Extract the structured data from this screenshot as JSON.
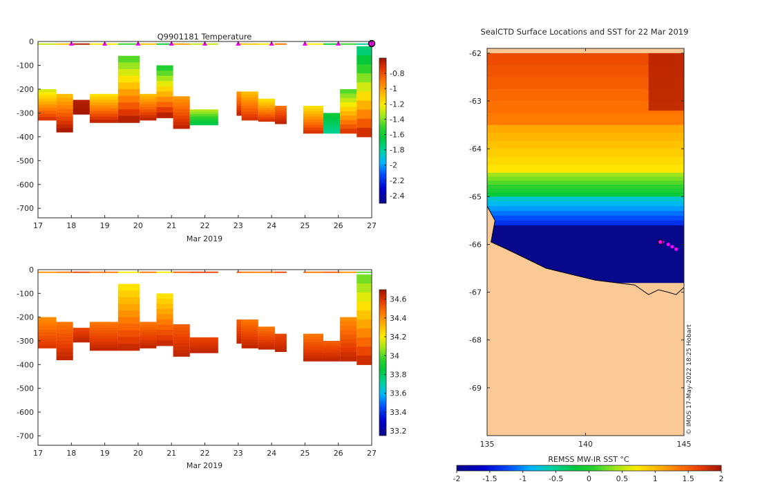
{
  "chart_data": [
    {
      "type": "heatmap",
      "title": "Q9901181  Temperature",
      "xlabel": "Mar 2019",
      "ylabel": "",
      "xlim": [
        17,
        27
      ],
      "ylim": [
        -740,
        0
      ],
      "x_ticks": [
        "17",
        "18",
        "19",
        "20",
        "21",
        "22",
        "23",
        "24",
        "25",
        "26",
        "27"
      ],
      "y_ticks": [
        "0",
        "-100",
        "-200",
        "-300",
        "-400",
        "-500",
        "-600",
        "-700"
      ],
      "colorbar": {
        "min": -2.5,
        "max": -0.6,
        "ticks": [
          "-0.8",
          "-1",
          "-1.2",
          "-1.4",
          "-1.6",
          "-1.8",
          "-2",
          "-2.2",
          "-2.4"
        ]
      },
      "profile_markers_x": [
        18,
        19,
        20,
        21,
        22,
        23,
        24,
        25,
        26
      ],
      "current_position_x": 27,
      "profiles": [
        {
          "x0": 17.0,
          "x1": 17.55,
          "top": -200,
          "bottom": -330,
          "tv": -1.3,
          "bv": -0.7
        },
        {
          "x0": 17.55,
          "x1": 18.05,
          "top": -220,
          "bottom": -380,
          "tv": -1.1,
          "bv": -0.6
        },
        {
          "x0": 18.05,
          "x1": 18.55,
          "top": -245,
          "bottom": -305,
          "tv": -0.65,
          "bv": -0.6
        },
        {
          "x0": 18.55,
          "x1": 19.4,
          "top": -220,
          "bottom": -340,
          "tv": -1.2,
          "bv": -0.65
        },
        {
          "x0": 19.4,
          "x1": 20.05,
          "top": -60,
          "bottom": -340,
          "tv": -1.5,
          "bv": -0.6
        },
        {
          "x0": 20.05,
          "x1": 20.55,
          "top": -220,
          "bottom": -330,
          "tv": -1.1,
          "bv": -0.65
        },
        {
          "x0": 20.55,
          "x1": 21.05,
          "top": -100,
          "bottom": -320,
          "tv": -1.6,
          "bv": -0.6
        },
        {
          "x0": 21.05,
          "x1": 21.55,
          "top": -230,
          "bottom": -365,
          "tv": -1.0,
          "bv": -0.65
        },
        {
          "x0": 21.55,
          "x1": 22.4,
          "top": -285,
          "bottom": -350,
          "tv": -1.3,
          "bv": -1.7
        },
        {
          "x0": 22.95,
          "x1": 23.1,
          "top": -210,
          "bottom": -310,
          "tv": -1.0,
          "bv": -0.65
        },
        {
          "x0": 23.1,
          "x1": 23.6,
          "top": -210,
          "bottom": -330,
          "tv": -1.1,
          "bv": -0.7
        },
        {
          "x0": 23.6,
          "x1": 24.1,
          "top": -240,
          "bottom": -335,
          "tv": -1.2,
          "bv": -0.7
        },
        {
          "x0": 24.1,
          "x1": 24.45,
          "top": -270,
          "bottom": -345,
          "tv": -0.9,
          "bv": -0.65
        },
        {
          "x0": 24.95,
          "x1": 25.55,
          "top": -270,
          "bottom": -385,
          "tv": -1.2,
          "bv": -0.7
        },
        {
          "x0": 25.55,
          "x1": 26.05,
          "top": -300,
          "bottom": -385,
          "tv": -1.6,
          "bv": -1.8
        },
        {
          "x0": 26.05,
          "x1": 26.55,
          "top": -200,
          "bottom": -385,
          "tv": -1.5,
          "bv": -0.7
        },
        {
          "x0": 26.55,
          "x1": 27.0,
          "top": -20,
          "bottom": -400,
          "tv": -1.8,
          "bv": -0.65
        }
      ]
    },
    {
      "type": "heatmap",
      "title": "",
      "xlabel": "Mar 2019",
      "ylabel": "",
      "xlim": [
        17,
        27
      ],
      "ylim": [
        -740,
        0
      ],
      "x_ticks": [
        "17",
        "18",
        "19",
        "20",
        "21",
        "22",
        "23",
        "24",
        "25",
        "26",
        "27"
      ],
      "y_ticks": [
        "0",
        "-100",
        "-200",
        "-300",
        "-400",
        "-500",
        "-600",
        "-700"
      ],
      "colorbar": {
        "min": 33.15,
        "max": 34.7,
        "ticks": [
          "34.6",
          "34.4",
          "34.2",
          "34",
          "33.8",
          "33.6",
          "33.4",
          "33.2"
        ]
      },
      "profiles": [
        {
          "x0": 17.0,
          "x1": 17.55,
          "top": -200,
          "bottom": -330,
          "tv": 34.4,
          "bv": 34.6
        },
        {
          "x0": 17.55,
          "x1": 18.05,
          "top": -220,
          "bottom": -380,
          "tv": 34.45,
          "bv": 34.65
        },
        {
          "x0": 18.05,
          "x1": 18.55,
          "top": -245,
          "bottom": -305,
          "tv": 34.55,
          "bv": 34.65
        },
        {
          "x0": 18.55,
          "x1": 19.4,
          "top": -220,
          "bottom": -340,
          "tv": 34.45,
          "bv": 34.65
        },
        {
          "x0": 19.4,
          "x1": 20.05,
          "top": -60,
          "bottom": -340,
          "tv": 34.2,
          "bv": 34.65
        },
        {
          "x0": 20.05,
          "x1": 20.55,
          "top": -220,
          "bottom": -330,
          "tv": 34.45,
          "bv": 34.65
        },
        {
          "x0": 20.55,
          "x1": 21.05,
          "top": -100,
          "bottom": -320,
          "tv": 34.2,
          "bv": 34.65
        },
        {
          "x0": 21.05,
          "x1": 21.55,
          "top": -230,
          "bottom": -365,
          "tv": 34.5,
          "bv": 34.65
        },
        {
          "x0": 21.55,
          "x1": 22.4,
          "top": -285,
          "bottom": -350,
          "tv": 34.55,
          "bv": 34.65
        },
        {
          "x0": 22.95,
          "x1": 23.1,
          "top": -210,
          "bottom": -310,
          "tv": 34.5,
          "bv": 34.65
        },
        {
          "x0": 23.1,
          "x1": 23.6,
          "top": -210,
          "bottom": -330,
          "tv": 34.45,
          "bv": 34.65
        },
        {
          "x0": 23.6,
          "x1": 24.1,
          "top": -240,
          "bottom": -335,
          "tv": 34.45,
          "bv": 34.65
        },
        {
          "x0": 24.1,
          "x1": 24.45,
          "top": -270,
          "bottom": -345,
          "tv": 34.55,
          "bv": 34.65
        },
        {
          "x0": 24.95,
          "x1": 25.55,
          "top": -270,
          "bottom": -385,
          "tv": 34.45,
          "bv": 34.65
        },
        {
          "x0": 25.55,
          "x1": 26.05,
          "top": -300,
          "bottom": -385,
          "tv": 34.5,
          "bv": 34.65
        },
        {
          "x0": 26.05,
          "x1": 26.55,
          "top": -200,
          "bottom": -385,
          "tv": 34.4,
          "bv": 34.65
        },
        {
          "x0": 26.55,
          "x1": 27.0,
          "top": -20,
          "bottom": -400,
          "tv": 34.0,
          "bv": 34.65
        }
      ]
    },
    {
      "type": "heatmap",
      "title": "SealCTD Surface Locations and SST for 22 Mar 2019",
      "xlabel": "",
      "ylabel": "",
      "xlim": [
        135,
        145
      ],
      "ylim": [
        -70,
        -61.9
      ],
      "x_ticks": [
        "135",
        "140",
        "145"
      ],
      "y_ticks": [
        "-62",
        "-63",
        "-64",
        "-65",
        "-66",
        "-67",
        "-68",
        "-69"
      ],
      "colorbar": {
        "label": "REMSS MW-IR SST °C",
        "min": -2,
        "max": 2,
        "ticks": [
          "-2",
          "-1.5",
          "-1",
          "-0.5",
          "0",
          "0.5",
          "1",
          "1.5",
          "2"
        ]
      },
      "sst_zones_lat": [
        -62.0,
        -63.5,
        -64.5,
        -65.0,
        -65.6,
        -66.8
      ],
      "sst_zone_values": [
        1.6,
        1.1,
        0.4,
        -0.7,
        -2.0
      ],
      "seal_locations": [
        [
          143.9,
          -65.95
        ],
        [
          144.2,
          -66.0
        ],
        [
          144.4,
          -66.05
        ],
        [
          144.6,
          -66.1
        ]
      ],
      "current_location": [
        143.8,
        -65.95
      ],
      "credit": "© IMOS 17-May-2022 18:25 Hobart"
    }
  ]
}
